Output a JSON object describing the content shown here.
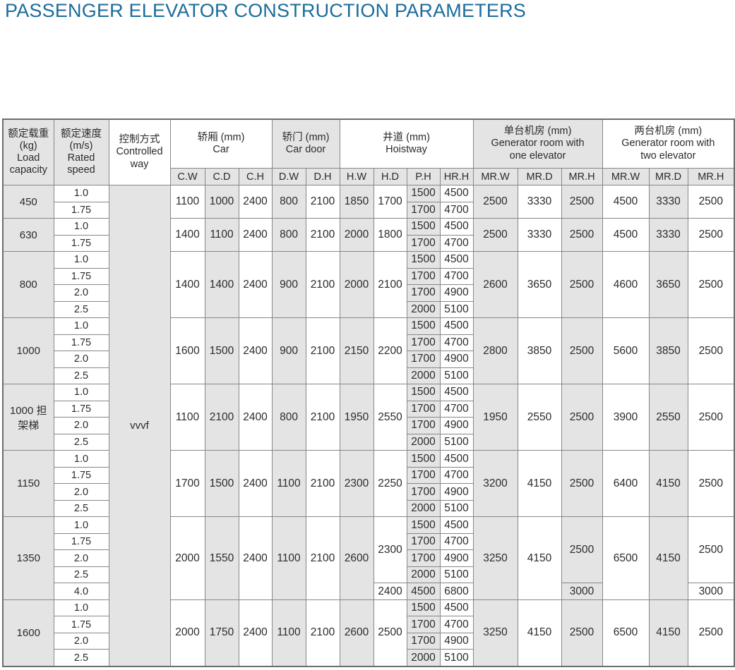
{
  "title": "PASSENGER ELEVATOR CONSTRUCTION PARAMETERS",
  "colors": {
    "title_blue": "#1b6c9a",
    "cell_shade_gray": "#e4e4e4",
    "grid_border": "#878787"
  },
  "table": {
    "control_value": "vvvf",
    "header_groups": [
      {
        "lines": [
          "额定载重",
          "(kg)",
          "Load",
          "capacity"
        ],
        "rowspan": 2,
        "colspan": 1,
        "shaded": true,
        "name": "header-load-capacity"
      },
      {
        "lines": [
          "额定速度",
          "(m/s)",
          "Rated",
          "speed"
        ],
        "rowspan": 2,
        "colspan": 1,
        "shaded": true,
        "name": "header-rated-speed"
      },
      {
        "lines": [
          "控制方式",
          "Controlled",
          "way"
        ],
        "rowspan": 2,
        "colspan": 1,
        "shaded": false,
        "name": "header-controlled-way"
      },
      {
        "lines": [
          "轿厢 (mm)",
          "Car"
        ],
        "rowspan": 1,
        "colspan": 3,
        "shaded": false,
        "name": "header-car"
      },
      {
        "lines": [
          "轿门 (mm)",
          "Car door"
        ],
        "rowspan": 1,
        "colspan": 2,
        "shaded": true,
        "name": "header-car-door"
      },
      {
        "lines": [
          "井道 (mm)",
          "Hoistway"
        ],
        "rowspan": 1,
        "colspan": 4,
        "shaded": false,
        "name": "header-hoistway"
      },
      {
        "lines": [
          "单台机房 (mm)",
          "Generator room with",
          "one elevator"
        ],
        "rowspan": 1,
        "colspan": 3,
        "shaded": true,
        "name": "header-machine-room-one"
      },
      {
        "lines": [
          "两台机房 (mm)",
          "Generator room with",
          "two elevator"
        ],
        "rowspan": 1,
        "colspan": 3,
        "shaded": false,
        "name": "header-machine-room-two"
      }
    ],
    "sub_headers": [
      "C.W",
      "C.D",
      "C.H",
      "D.W",
      "D.H",
      "H.W",
      "H.D",
      "P.H",
      "HR.H",
      "MR.W",
      "MR.D",
      "MR.H",
      "MR.W",
      "MR.D",
      "MR.H"
    ],
    "groups": [
      {
        "load": [
          "450"
        ],
        "speeds": [
          "1.0",
          "1.75"
        ],
        "car": [
          "1100",
          "1000",
          "2400"
        ],
        "door": [
          "800",
          "2100"
        ],
        "hw": "1850",
        "hd": [
          [
            "1700",
            2
          ]
        ],
        "ph": [
          "1500",
          "1700"
        ],
        "hrh": [
          "4500",
          "4700"
        ],
        "mr_one": {
          "w": [
            [
              "2500",
              2
            ]
          ],
          "d": [
            [
              "3330",
              2
            ]
          ],
          "h": [
            [
              "2500",
              2
            ]
          ]
        },
        "mr_two": {
          "w": [
            [
              "4500",
              2
            ]
          ],
          "d": [
            [
              "3330",
              2
            ]
          ],
          "h": [
            [
              "2500",
              2
            ]
          ]
        }
      },
      {
        "load": [
          "630"
        ],
        "speeds": [
          "1.0",
          "1.75"
        ],
        "car": [
          "1400",
          "1100",
          "2400"
        ],
        "door": [
          "800",
          "2100"
        ],
        "hw": "2000",
        "hd": [
          [
            "1800",
            2
          ]
        ],
        "ph": [
          "1500",
          "1700"
        ],
        "hrh": [
          "4500",
          "4700"
        ],
        "mr_one": {
          "w": [
            [
              "2500",
              2
            ]
          ],
          "d": [
            [
              "3330",
              2
            ]
          ],
          "h": [
            [
              "2500",
              2
            ]
          ]
        },
        "mr_two": {
          "w": [
            [
              "4500",
              2
            ]
          ],
          "d": [
            [
              "3330",
              2
            ]
          ],
          "h": [
            [
              "2500",
              2
            ]
          ]
        }
      },
      {
        "load": [
          "800"
        ],
        "speeds": [
          "1.0",
          "1.75",
          "2.0",
          "2.5"
        ],
        "car": [
          "1400",
          "1400",
          "2400"
        ],
        "door": [
          "900",
          "2100"
        ],
        "hw": "2000",
        "hd": [
          [
            "2100",
            4
          ]
        ],
        "ph": [
          "1500",
          "1700",
          "1700",
          "2000"
        ],
        "hrh": [
          "4500",
          "4700",
          "4900",
          "5100"
        ],
        "mr_one": {
          "w": [
            [
              "2600",
              4
            ]
          ],
          "d": [
            [
              "3650",
              4
            ]
          ],
          "h": [
            [
              "2500",
              4
            ]
          ]
        },
        "mr_two": {
          "w": [
            [
              "4600",
              4
            ]
          ],
          "d": [
            [
              "3650",
              4
            ]
          ],
          "h": [
            [
              "2500",
              4
            ]
          ]
        }
      },
      {
        "load": [
          "1000"
        ],
        "speeds": [
          "1.0",
          "1.75",
          "2.0",
          "2.5"
        ],
        "car": [
          "1600",
          "1500",
          "2400"
        ],
        "door": [
          "900",
          "2100"
        ],
        "hw": "2150",
        "hd": [
          [
            "2200",
            4
          ]
        ],
        "ph": [
          "1500",
          "1700",
          "1700",
          "2000"
        ],
        "hrh": [
          "4500",
          "4700",
          "4900",
          "5100"
        ],
        "mr_one": {
          "w": [
            [
              "2800",
              4
            ]
          ],
          "d": [
            [
              "3850",
              4
            ]
          ],
          "h": [
            [
              "2500",
              4
            ]
          ]
        },
        "mr_two": {
          "w": [
            [
              "5600",
              4
            ]
          ],
          "d": [
            [
              "3850",
              4
            ]
          ],
          "h": [
            [
              "2500",
              4
            ]
          ]
        }
      },
      {
        "load": [
          "1000 担",
          "架梯"
        ],
        "speeds": [
          "1.0",
          "1.75",
          "2.0",
          "2.5"
        ],
        "car": [
          "1100",
          "2100",
          "2400"
        ],
        "door": [
          "800",
          "2100"
        ],
        "hw": "1950",
        "hd": [
          [
            "2550",
            4
          ]
        ],
        "ph": [
          "1500",
          "1700",
          "1700",
          "2000"
        ],
        "hrh": [
          "4500",
          "4700",
          "4900",
          "5100"
        ],
        "mr_one": {
          "w": [
            [
              "1950",
              4
            ]
          ],
          "d": [
            [
              "2550",
              4
            ]
          ],
          "h": [
            [
              "2500",
              4
            ]
          ]
        },
        "mr_two": {
          "w": [
            [
              "3900",
              4
            ]
          ],
          "d": [
            [
              "2550",
              4
            ]
          ],
          "h": [
            [
              "2500",
              4
            ]
          ]
        }
      },
      {
        "load": [
          "1150"
        ],
        "speeds": [
          "1.0",
          "1.75",
          "2.0",
          "2.5"
        ],
        "car": [
          "1700",
          "1500",
          "2400"
        ],
        "door": [
          "1100",
          "2100"
        ],
        "hw": "2300",
        "hd": [
          [
            "2250",
            4
          ]
        ],
        "ph": [
          "1500",
          "1700",
          "1700",
          "2000"
        ],
        "hrh": [
          "4500",
          "4700",
          "4900",
          "5100"
        ],
        "mr_one": {
          "w": [
            [
              "3200",
              4
            ]
          ],
          "d": [
            [
              "4150",
              4
            ]
          ],
          "h": [
            [
              "2500",
              4
            ]
          ]
        },
        "mr_two": {
          "w": [
            [
              "6400",
              4
            ]
          ],
          "d": [
            [
              "4150",
              4
            ]
          ],
          "h": [
            [
              "2500",
              4
            ]
          ]
        }
      },
      {
        "load": [
          "1350"
        ],
        "speeds": [
          "1.0",
          "1.75",
          "2.0",
          "2.5",
          "4.0"
        ],
        "car": [
          "2000",
          "1550",
          "2400"
        ],
        "door": [
          "1100",
          "2100"
        ],
        "hw": "2600",
        "hd": [
          [
            "2300",
            4
          ],
          [
            "2400",
            1
          ]
        ],
        "ph": [
          "1500",
          "1700",
          "1700",
          "2000",
          "4500"
        ],
        "hrh": [
          "4500",
          "4700",
          "4900",
          "5100",
          "6800"
        ],
        "mr_one": {
          "w": [
            [
              "3250",
              5
            ]
          ],
          "d": [
            [
              "4150",
              5
            ]
          ],
          "h": [
            [
              "2500",
              4
            ],
            [
              "3000",
              1
            ]
          ]
        },
        "mr_two": {
          "w": [
            [
              "6500",
              5
            ]
          ],
          "d": [
            [
              "4150",
              5
            ]
          ],
          "h": [
            [
              "2500",
              4
            ],
            [
              "3000",
              1
            ]
          ]
        }
      },
      {
        "load": [
          "1600"
        ],
        "speeds": [
          "1.0",
          "1.75",
          "2.0",
          "2.5"
        ],
        "car": [
          "2000",
          "1750",
          "2400"
        ],
        "door": [
          "1100",
          "2100"
        ],
        "hw": "2600",
        "hd": [
          [
            "2500",
            4
          ]
        ],
        "ph": [
          "1500",
          "1700",
          "1700",
          "2000"
        ],
        "hrh": [
          "4500",
          "4700",
          "4900",
          "5100"
        ],
        "mr_one": {
          "w": [
            [
              "3250",
              4
            ]
          ],
          "d": [
            [
              "4150",
              4
            ]
          ],
          "h": [
            [
              "2500",
              4
            ]
          ]
        },
        "mr_two": {
          "w": [
            [
              "6500",
              4
            ]
          ],
          "d": [
            [
              "4150",
              4
            ]
          ],
          "h": [
            [
              "2500",
              4
            ]
          ]
        }
      }
    ]
  }
}
